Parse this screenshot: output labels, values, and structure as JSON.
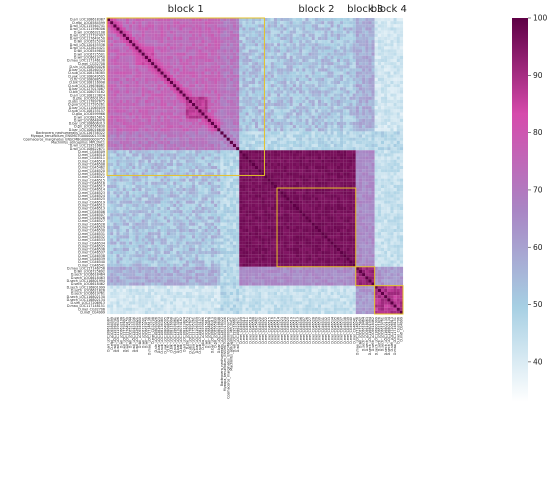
{
  "chart_data": {
    "type": "heatmap",
    "title": "",
    "xlabel": "",
    "ylabel": "",
    "colorbar": {
      "min": 33,
      "max": 100,
      "ticks": [
        40,
        50,
        60,
        70,
        80,
        90,
        100
      ],
      "colors": [
        "#ffffff",
        "#a6cfe3",
        "#a985c4",
        "#d64bac",
        "#5e0045"
      ]
    },
    "blocks": [
      {
        "label": "block 1",
        "start": 0,
        "end": 49
      },
      {
        "label": "block 2",
        "start": 54,
        "end": 78
      },
      {
        "label": "block 3",
        "start": 79,
        "end": 84
      },
      {
        "label": "block 4",
        "start": 85,
        "end": 93
      }
    ],
    "labels": [
      "D.ari_LOC108618387",
      "D.mpj_LOC6584599",
      "D.wil_LOC115564741",
      "D.wil_LOC111596306",
      "D.wil_LOC6632108",
      "D.wil_LOC117797497",
      "D.wil_LOC117649150",
      "D.wil_LOC6525244",
      "D.wil_LOC120455536",
      "D.wil_LOC122624421",
      "D.wil_LOC6549800",
      "D.wil_LOC6725501",
      "D.wil_LOC6619750",
      "D.mau_LOC117146136",
      "D.mel_CG32708",
      "D.sin_LOC108050026",
      "D.bar_LOC128260323",
      "D.sub_LOC108136385",
      "D.yak_LOC108049505",
      "D.fic_LOC108088574",
      "D.bik_LOC108116998",
      "D.sub_LOC119636061",
      "D.bar_LOC127013067",
      "D.bik_LOC108074162",
      "D.ari_LOC108123824",
      "D.pse_LOC6501953",
      "D.obs_LOC117897675",
      "D.gua_LOC117595261",
      "D.bar_LOC111065059",
      "D.sub_LOC108155157",
      "D.gua_LOC6599966",
      "D.wil_LOC6815815",
      "D.wil_LOC6648478",
      "D.bar_LOC108606313",
      "D.gri_LOC6565830",
      "D.bar_LOC108016648",
      "Bactrocera_neohumeralis_LOC126758322",
      "Myzopa_tenuifolium_ENSMGTG00000013336",
      "Cosmaceros_marginatus_ENSCMBG00000009755",
      "Machimus_atricapillus_MPL2NC1",
      "D.wil_LOC119516661",
      "D.wil_LOC108622671",
      "D.mel_CG46509",
      "D.mel_CG46510",
      "D.mel_CG46511",
      "D.mel_CG46518",
      "D.mel_CG46508",
      "D.mel_CG45462",
      "D.mel_CG46520",
      "D.mel_CG46521",
      "D.mel_CG46522",
      "D.mel_CG46515",
      "D.mel_CG46516",
      "D.mel_CG46517",
      "D.mel_CG46514",
      "D.mel_CG46523",
      "D.mel_CG46524",
      "D.mel_CG46525",
      "D.mel_CG46519",
      "D.mel_CG46512",
      "D.mel_CG46513",
      "D.mel_CG46506",
      "D.mel_CG46507",
      "D.mel_CG46526",
      "D.mel_CG46527",
      "D.mel_CG46528",
      "D.mel_CG46529",
      "D.mel_CG46530",
      "D.mel_CG46531",
      "D.mel_CG46532",
      "D.mel_CG46533",
      "D.mel_CG46534",
      "D.mel_CG46535",
      "D.mel_CG46536",
      "D.mel_CG46537",
      "D.mel_CG46538",
      "D.mel_CG46539",
      "D.mel_CG46540",
      "D.mel_CG46541",
      "D.mau_LOC117146756",
      "D.wil_LOC6725892",
      "D.sech_LOC6618464",
      "D.sech_LOC6618463",
      "D.sech_LOC116801994",
      "D.sech_LOC6618462",
      "D.sech_LOC116801999",
      "D.sech_LOC6621826",
      "D.sech_LOC6619761",
      "D.sech_LOC116802130",
      "D.sech_LOC116802134",
      "D.sim_LOC27206913",
      "D.mau_LOC117148151",
      "D.mel_CG32706",
      "D.mel_CG4999"
    ]
  }
}
